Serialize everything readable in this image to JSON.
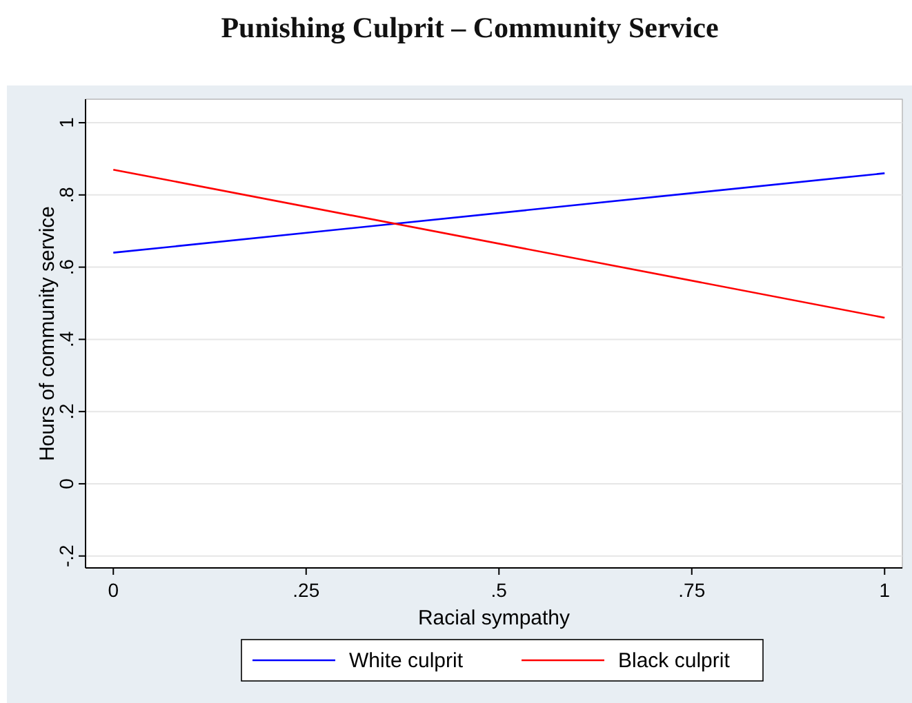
{
  "chart_data": {
    "type": "line",
    "title": "Punishing Culprit – Community Service",
    "xlabel": "Racial sympathy",
    "ylabel": "Hours of community service",
    "x": [
      0,
      1
    ],
    "series": [
      {
        "name": "White culprit",
        "color": "#0000ff",
        "values": [
          0.64,
          0.86
        ]
      },
      {
        "name": "Black culprit",
        "color": "#ff0000",
        "values": [
          0.87,
          0.46
        ]
      }
    ],
    "xlim": [
      -0.036,
      1.023
    ],
    "ylim": [
      -0.233,
      1.065
    ],
    "xticks": [
      0,
      {
        "value": 0.25,
        "label": ".25"
      },
      {
        "value": 0.5,
        "label": ".5"
      },
      {
        "value": 0.75,
        "label": ".75"
      },
      1
    ],
    "yticks": [
      {
        "value": -0.2,
        "label": "-.2"
      },
      0,
      {
        "value": 0.2,
        "label": ".2"
      },
      {
        "value": 0.4,
        "label": ".4"
      },
      {
        "value": 0.6,
        "label": ".6"
      },
      {
        "value": 0.8,
        "label": ".8"
      },
      1
    ],
    "grid": "y",
    "legend": "bottom",
    "marker": "none",
    "line_style": "solid"
  }
}
